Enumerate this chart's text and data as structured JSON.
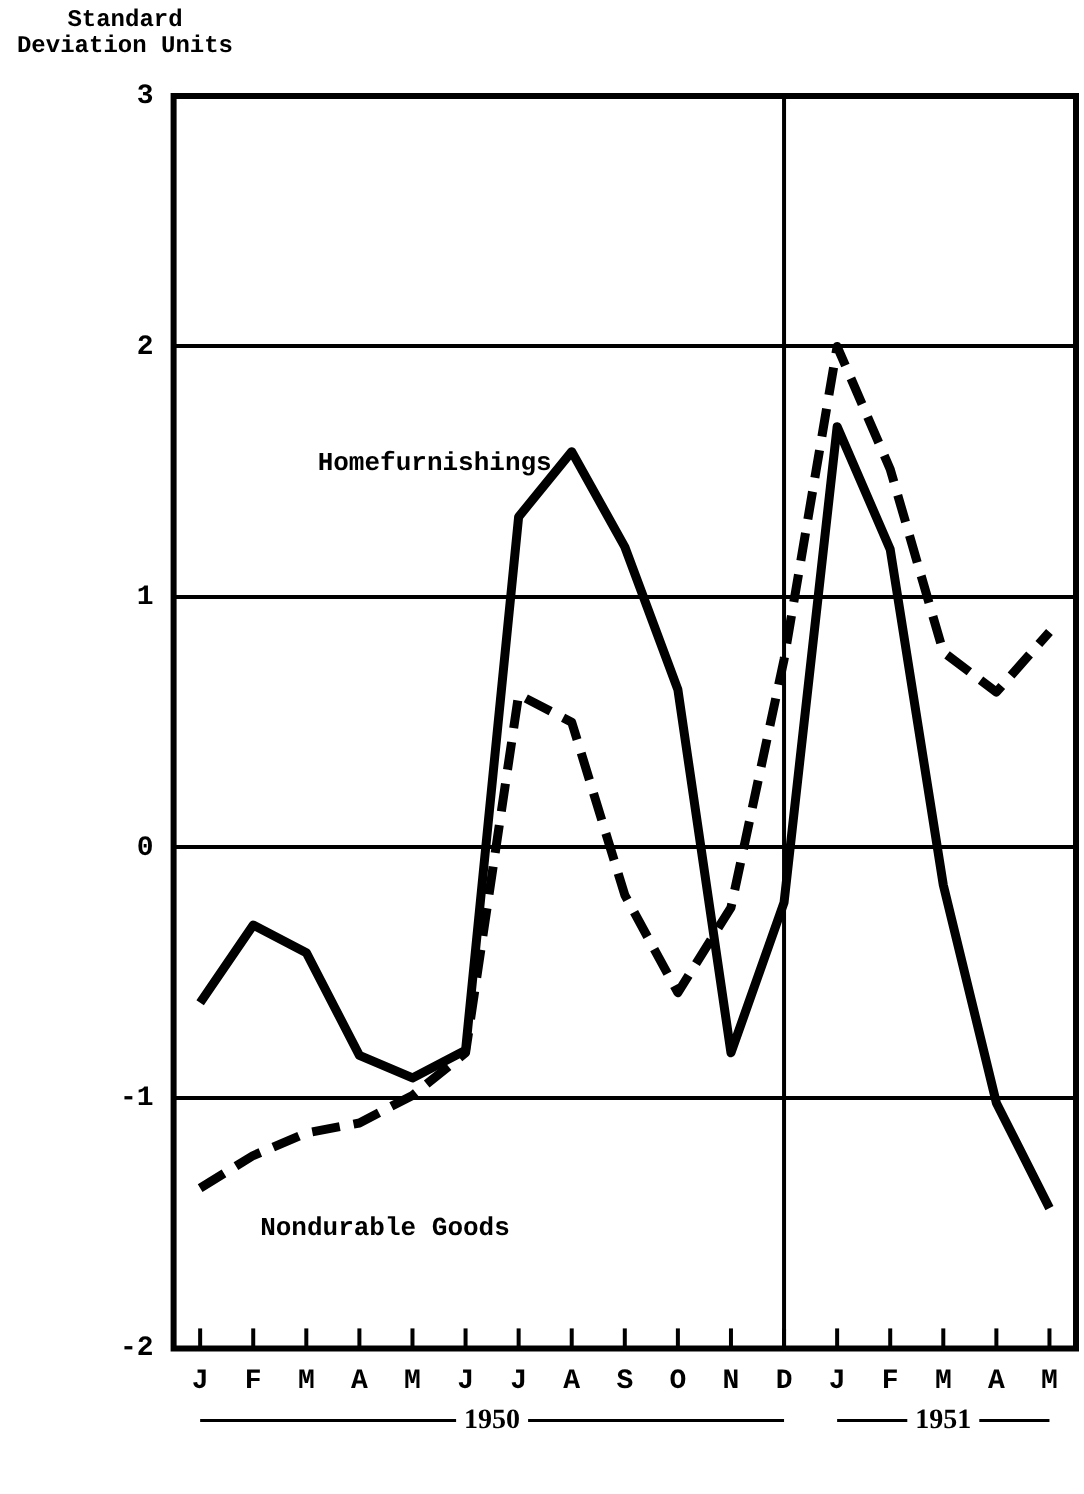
{
  "chart_data": {
    "type": "line",
    "ylabel": "Standard Deviation Units",
    "categories": [
      "J",
      "F",
      "M",
      "A",
      "M",
      "J",
      "J",
      "A",
      "S",
      "O",
      "N",
      "D",
      "J",
      "F",
      "M",
      "A",
      "M"
    ],
    "series": [
      {
        "name": "Homefurnishings",
        "color": "#000000",
        "line_style": "solid",
        "values": [
          -0.62,
          -0.31,
          -0.42,
          -0.83,
          -0.92,
          -0.81,
          1.32,
          1.58,
          1.2,
          0.63,
          -0.82,
          -0.22,
          1.68,
          1.19,
          -0.15,
          -1.02,
          -1.44
        ]
      },
      {
        "name": "Nondurable Goods",
        "color": "#000000",
        "line_style": "dashed",
        "values": [
          -1.36,
          -1.23,
          -1.14,
          -1.1,
          -0.99,
          -0.82,
          0.61,
          0.5,
          -0.19,
          -0.58,
          -0.24,
          0.75,
          2.0,
          1.51,
          0.78,
          0.62,
          0.86
        ]
      }
    ],
    "ylim": [
      -2,
      3
    ],
    "yticks": [
      -2,
      -1,
      0,
      1,
      2,
      3
    ],
    "grid": "y",
    "legend": false,
    "marker": "none",
    "ref_lines": [
      {
        "axis": "x",
        "value": "D",
        "color": "#000000"
      }
    ],
    "annotations": [
      "1950",
      "1951"
    ]
  }
}
